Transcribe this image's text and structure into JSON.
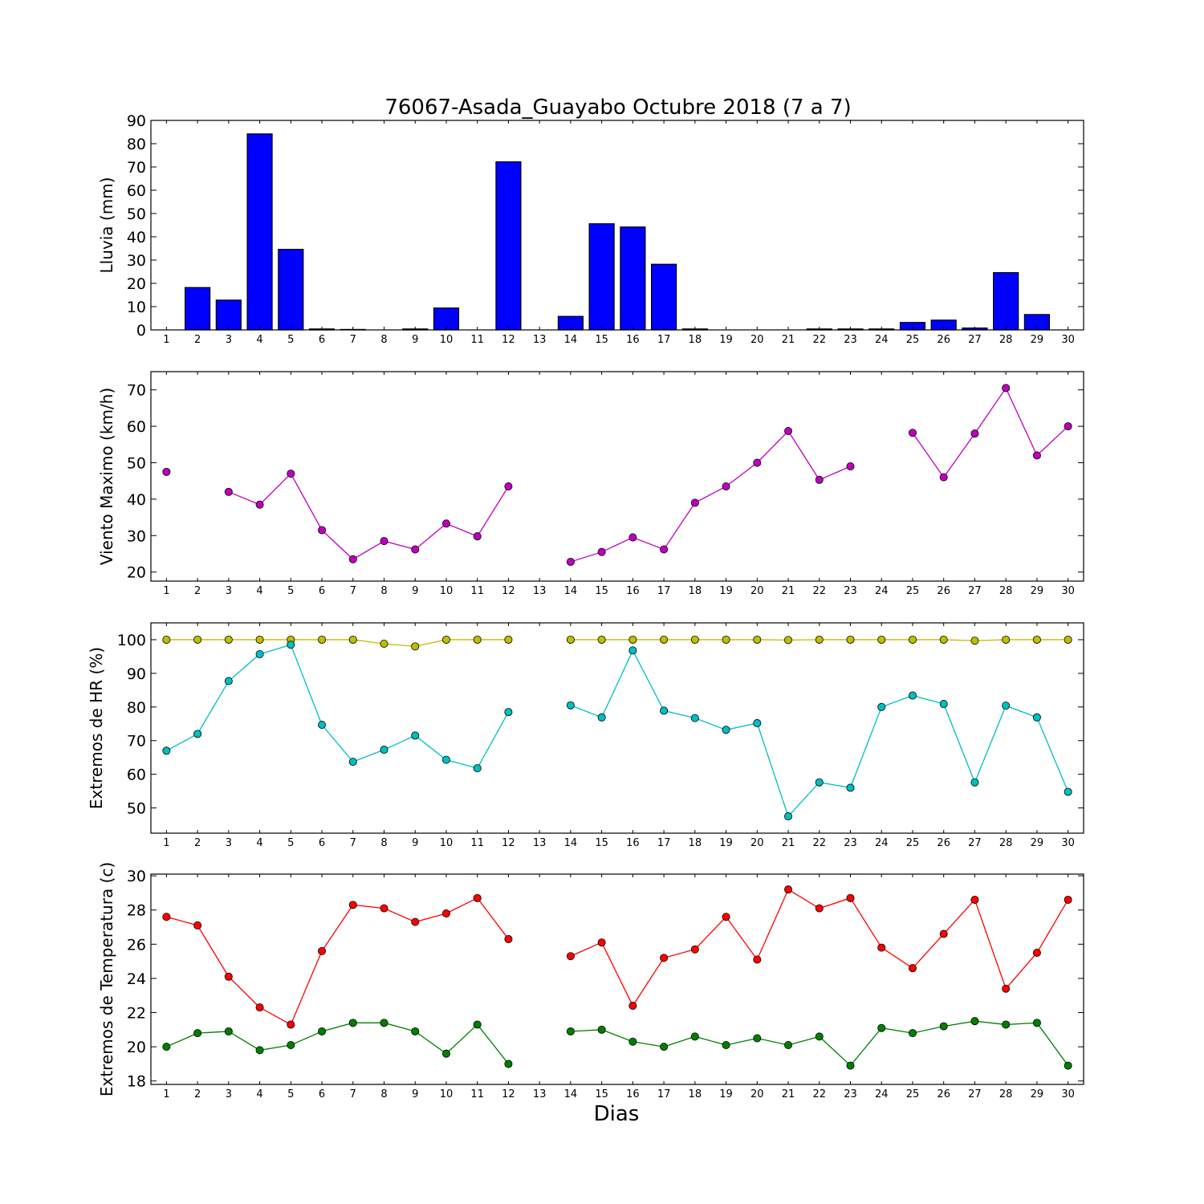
{
  "figure": {
    "title": "76067-Asada_Guayabo Octubre 2018  (7 a 7)",
    "xlabel": "Dias"
  },
  "chart_data": [
    {
      "type": "bar",
      "ylabel": "Lluvia (mm)",
      "xlim": [
        0.5,
        30.5
      ],
      "ylim": [
        0,
        90
      ],
      "yticks": [
        0,
        10,
        20,
        30,
        40,
        50,
        60,
        70,
        80,
        90
      ],
      "x": [
        1,
        2,
        3,
        4,
        5,
        6,
        7,
        8,
        9,
        10,
        11,
        12,
        13,
        14,
        15,
        16,
        17,
        18,
        19,
        20,
        21,
        22,
        23,
        24,
        25,
        26,
        27,
        28,
        29,
        30
      ],
      "xtick_labels": [
        "1",
        "2",
        "3",
        "4",
        "5",
        "6",
        "7",
        "8",
        "9",
        "10",
        "11",
        "12",
        "13",
        "14",
        "15",
        "16",
        "17",
        "18",
        "19",
        "20",
        "21",
        "22",
        "23",
        "24",
        "25",
        "26",
        "27",
        "28",
        "29",
        "30"
      ],
      "grid": false,
      "series": [
        {
          "color": "#0000ff",
          "values": [
            0,
            18.2,
            12.8,
            84.2,
            34.6,
            0.4,
            0.2,
            0,
            0.4,
            9.4,
            0,
            72.2,
            0,
            5.8,
            45.6,
            44.2,
            28.2,
            0.4,
            0,
            0,
            0,
            0.4,
            0.4,
            0.4,
            3.2,
            4.2,
            0.8,
            24.6,
            6.6,
            0
          ]
        }
      ]
    },
    {
      "type": "line",
      "ylabel": "Viento Maximo (km/h)",
      "xlim": [
        0.5,
        30.5
      ],
      "ylim": [
        17.5,
        75
      ],
      "yticks": [
        20,
        30,
        40,
        50,
        60,
        70
      ],
      "x": [
        1,
        2,
        3,
        4,
        5,
        6,
        7,
        8,
        9,
        10,
        11,
        12,
        13,
        14,
        15,
        16,
        17,
        18,
        19,
        20,
        21,
        22,
        23,
        24,
        25,
        26,
        27,
        28,
        29,
        30
      ],
      "xtick_labels": [
        "1",
        "2",
        "3",
        "4",
        "5",
        "6",
        "7",
        "8",
        "9",
        "10",
        "11",
        "12",
        "13",
        "14",
        "15",
        "16",
        "17",
        "18",
        "19",
        "20",
        "21",
        "22",
        "23",
        "24",
        "25",
        "26",
        "27",
        "28",
        "29",
        "30"
      ],
      "grid": false,
      "series": [
        {
          "color": "#bf00bf",
          "values": [
            47.5,
            null,
            42,
            38.5,
            47,
            31.5,
            23.5,
            28.5,
            26.2,
            33.3,
            29.8,
            43.5,
            null,
            22.8,
            25.5,
            29.5,
            26.2,
            39,
            43.5,
            50,
            58.7,
            45.3,
            49,
            null,
            58.2,
            46,
            58,
            70.5,
            52,
            60
          ]
        }
      ]
    },
    {
      "type": "line",
      "ylabel": "Extremos de HR (%)",
      "xlim": [
        0.5,
        30.5
      ],
      "ylim": [
        42.5,
        105
      ],
      "yticks": [
        50,
        60,
        70,
        80,
        90,
        100
      ],
      "x": [
        1,
        2,
        3,
        4,
        5,
        6,
        7,
        8,
        9,
        10,
        11,
        12,
        13,
        14,
        15,
        16,
        17,
        18,
        19,
        20,
        21,
        22,
        23,
        24,
        25,
        26,
        27,
        28,
        29,
        30
      ],
      "xtick_labels": [
        "1",
        "2",
        "3",
        "4",
        "5",
        "6",
        "7",
        "8",
        "9",
        "10",
        "11",
        "12",
        "13",
        "14",
        "15",
        "16",
        "17",
        "18",
        "19",
        "20",
        "21",
        "22",
        "23",
        "24",
        "25",
        "26",
        "27",
        "28",
        "29",
        "30"
      ],
      "grid": false,
      "series": [
        {
          "color": "#bfbf00",
          "values": [
            100,
            100,
            100,
            100,
            100,
            100,
            100,
            98.8,
            98,
            100,
            100,
            100,
            null,
            100,
            100,
            100,
            100,
            100,
            100,
            100,
            99.9,
            100,
            100,
            100,
            100,
            100,
            99.7,
            100,
            100,
            100
          ]
        },
        {
          "color": "#00bfbf",
          "values": [
            67,
            72,
            87.7,
            95.7,
            98.5,
            74.7,
            63.7,
            67.3,
            71.5,
            64.3,
            61.8,
            78.5,
            null,
            80.5,
            76.9,
            96.8,
            78.9,
            76.7,
            73.2,
            75.2,
            47.5,
            57.6,
            56,
            80,
            83.4,
            80.9,
            57.6,
            80.4,
            76.9,
            54.8
          ]
        }
      ]
    },
    {
      "type": "line",
      "ylabel": "Extremos de Temperatura (c)",
      "xlim": [
        0.5,
        30.5
      ],
      "ylim": [
        17.8,
        30.1
      ],
      "yticks": [
        18,
        20,
        22,
        24,
        26,
        28,
        30
      ],
      "x": [
        1,
        2,
        3,
        4,
        5,
        6,
        7,
        8,
        9,
        10,
        11,
        12,
        13,
        14,
        15,
        16,
        17,
        18,
        19,
        20,
        21,
        22,
        23,
        24,
        25,
        26,
        27,
        28,
        29,
        30
      ],
      "xtick_labels": [
        "1",
        "2",
        "3",
        "4",
        "5",
        "6",
        "7",
        "8",
        "9",
        "10",
        "11",
        "12",
        "13",
        "14",
        "15",
        "16",
        "17",
        "18",
        "19",
        "20",
        "21",
        "22",
        "23",
        "24",
        "25",
        "26",
        "27",
        "28",
        "29",
        "30"
      ],
      "grid": false,
      "series": [
        {
          "color": "#ff0000",
          "values": [
            27.6,
            27.1,
            24.1,
            22.3,
            21.3,
            25.6,
            28.3,
            28.1,
            27.3,
            27.8,
            28.7,
            26.3,
            null,
            25.3,
            26.1,
            22.4,
            25.2,
            25.7,
            27.6,
            25.1,
            29.2,
            28.1,
            28.7,
            25.8,
            24.6,
            26.6,
            28.6,
            23.4,
            25.5,
            28.6
          ]
        },
        {
          "color": "#008000",
          "values": [
            20,
            20.8,
            20.9,
            19.8,
            20.1,
            20.9,
            21.4,
            21.4,
            20.9,
            19.6,
            21.3,
            19,
            null,
            20.9,
            21,
            20.3,
            20,
            20.6,
            20.1,
            20.5,
            20.1,
            20.6,
            18.9,
            21.1,
            20.8,
            21.2,
            21.5,
            21.3,
            21.4,
            18.9
          ]
        }
      ]
    }
  ]
}
